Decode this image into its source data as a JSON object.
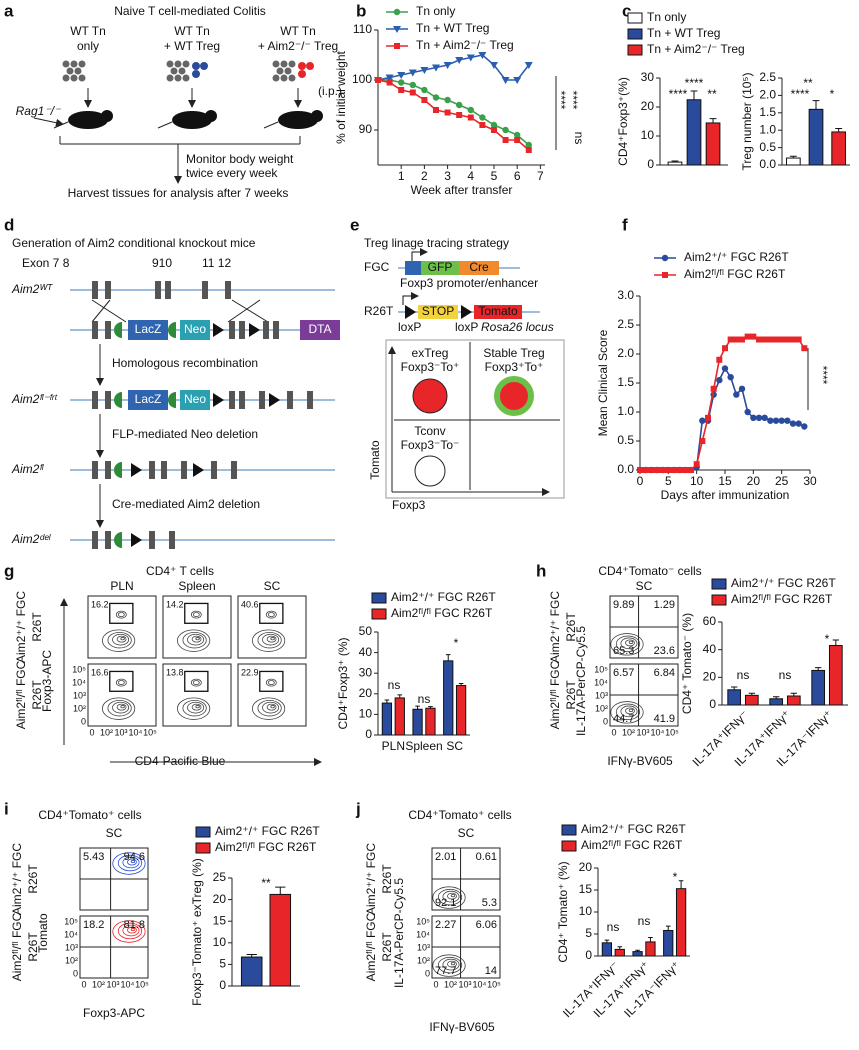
{
  "panel_labels": [
    "a",
    "b",
    "c",
    "d",
    "e",
    "f",
    "g",
    "h",
    "i",
    "j"
  ],
  "a": {
    "title": "Naive T cell-mediated Colitis",
    "groups": [
      [
        "WT Tn",
        "only"
      ],
      [
        "WT Tn",
        "+ WT Treg"
      ],
      [
        "WT Tn",
        "+ Aim2⁻/⁻ Treg"
      ]
    ],
    "route": "(i.p.)",
    "mouse": "Rag1⁻/⁻",
    "steps": [
      "Monitor body weight",
      "twice every week",
      "Harvest tissues for analysis after 7 weeks"
    ]
  },
  "d": {
    "title": "Generation of Aim2 conditional knockout mice",
    "exons": [
      "Exon 7 8",
      "910",
      "11 12"
    ],
    "alleles": [
      "Aim2ᵂᵀ",
      "Aim2ᶠˡ⁻ᶠʳᵗ",
      "Aim2ᶠˡ",
      "Aim2ᵈᵉˡ"
    ],
    "cassette": [
      "LacZ",
      "Neo",
      "DTA"
    ],
    "cassette2": [
      "LacZ",
      "Neo"
    ],
    "steps": [
      "Homologous recombination",
      "FLP-mediated Neo deletion",
      "Cre-mediated Aim2 deletion"
    ]
  },
  "e": {
    "title": "Treg linage tracing strategy",
    "fgc": {
      "name": "FGC",
      "parts": [
        "GFP",
        "Cre"
      ],
      "note": "Foxp3 promoter/enhancer"
    },
    "r26t": {
      "name": "R26T",
      "parts": [
        "STOP",
        "Tomato"
      ],
      "notes": [
        "loxP",
        "loxP",
        "Rosa26 locus"
      ]
    },
    "quadrants": [
      [
        "exTreg",
        "Foxp3⁻To⁺"
      ],
      [
        "Stable Treg",
        "Foxp3⁺To⁺"
      ],
      [
        "Tconv",
        "Foxp3⁻To⁻"
      ]
    ],
    "ylabel": "Tomato",
    "xlabel": "Foxp3"
  },
  "flows": [
    {
      "title": "CD4⁺ T cells",
      "columns": [
        "PLN",
        "Spleen",
        "SC"
      ],
      "rows": [
        [
          "Aim2⁺/⁺ FGC",
          "R26T"
        ],
        [
          "Aim2ᶠˡ/ᶠˡ FGC",
          "R26T"
        ]
      ],
      "ylabel": "Foxp3-APC",
      "xlabel": "CD4-Pacific Blue",
      "ticks": [
        "0",
        "10²",
        "10³",
        "10⁴",
        "10⁵"
      ],
      "values": [
        [
          [
            16.2
          ],
          [
            14.2
          ],
          [
            40.6
          ]
        ],
        [
          [
            16.6
          ],
          [
            13.8
          ],
          [
            22.9
          ]
        ]
      ]
    },
    {
      "title": "CD4⁺Tomato⁻ cells",
      "columns": [
        "SC"
      ],
      "rows": [
        [
          "Aim2⁺/⁺ FGC",
          "R26T"
        ],
        [
          "Aim2ᶠˡ/ᶠˡ FGC",
          "R26T"
        ]
      ],
      "ylabel": "IL-17A-PerCP-Cy5.5",
      "xlabel": "IFNγ-BV605",
      "ticks": [
        "0",
        "10²",
        "10³",
        "10⁴",
        "10⁵"
      ],
      "values": [
        [
          [
            9.89,
            1.29,
            65.3,
            23.6
          ]
        ],
        [
          [
            6.57,
            6.84,
            44.7,
            41.9
          ]
        ]
      ]
    },
    {
      "title": "CD4⁺Tomato⁺ cells",
      "columns": [
        "SC"
      ],
      "rows": [
        [
          "Aim2⁺/⁺ FGC",
          "R26T"
        ],
        [
          "Aim2ᶠˡ/ᶠˡ FGC",
          "R26T"
        ]
      ],
      "ylabel": "Tomato",
      "xlabel": "Foxp3-APC",
      "ticks": [
        "0",
        "10²",
        "10³",
        "10⁴",
        "10⁵"
      ],
      "values": [
        [
          [
            5.43,
            94.6
          ]
        ],
        [
          [
            18.2,
            81.8
          ]
        ]
      ]
    },
    {
      "title": "CD4⁺Tomato⁺ cells",
      "columns": [
        "SC"
      ],
      "rows": [
        [
          "Aim2⁺/⁺ FGC",
          "R26T"
        ],
        [
          "Aim2ᶠˡ/ᶠˡ FGC",
          "R26T"
        ]
      ],
      "ylabel": "IL-17A-PerCP-Cy5.5",
      "xlabel": "IFNγ-BV605",
      "ticks": [
        "0",
        "10²",
        "10³",
        "10⁴",
        "10⁵"
      ],
      "values": [
        [
          [
            2.01,
            0.61,
            92.1,
            5.3
          ]
        ],
        [
          [
            2.27,
            6.06,
            77.7,
            14
          ]
        ]
      ]
    }
  ],
  "chart_data": [
    {
      "type": "line",
      "ylabel": "% of initial weight",
      "xlabel": "Week after transfer",
      "x": [
        0,
        0.5,
        1,
        1.5,
        2,
        2.5,
        3,
        3.5,
        4,
        4.5,
        5,
        5.5,
        6,
        6.5
      ],
      "xlim": [
        0,
        7.2
      ],
      "xticks": [
        1,
        2,
        3,
        4,
        5,
        6,
        7
      ],
      "ylim": [
        83,
        110
      ],
      "yticks": [
        90,
        100,
        110
      ],
      "series": [
        {
          "name": "Tn only",
          "color": "#3aa14a",
          "marker": "circle",
          "values": [
            100,
            100,
            99.5,
            99,
            98,
            96.5,
            96,
            95,
            94,
            92.5,
            91,
            90,
            89,
            87
          ]
        },
        {
          "name": "Tn + WT Treg",
          "color": "#2a5fb0",
          "marker": "triangle",
          "values": [
            100,
            100.5,
            101,
            101.5,
            102,
            102.5,
            103,
            104,
            104.5,
            105,
            103,
            100,
            100,
            103
          ]
        },
        {
          "name": "Tn + Aim2⁻/⁻ Treg",
          "color": "#e8262a",
          "marker": "square",
          "values": [
            100,
            99.5,
            98,
            97.5,
            96,
            94,
            93.5,
            93,
            92.5,
            91,
            90,
            88,
            88,
            86
          ]
        }
      ],
      "annotations": [
        "****",
        "****",
        "ns"
      ]
    },
    {
      "type": "bar",
      "ylabel": "CD4⁺Foxp3⁺(%)",
      "categories": [
        null
      ],
      "ylim": [
        0,
        30
      ],
      "yticks": [
        0,
        10,
        20,
        30
      ],
      "series": [
        {
          "name": "Tn only",
          "color": "#ffffff",
          "values": [
            1
          ],
          "errors": [
            0.4
          ]
        },
        {
          "name": "Tn + WT Treg",
          "color": "#2a4a9c",
          "values": [
            22.5
          ],
          "errors": [
            3
          ]
        },
        {
          "name": "Tn + Aim2⁻/⁻ Treg",
          "color": "#e8262a",
          "values": [
            14.5
          ],
          "errors": [
            1.5
          ]
        }
      ],
      "annotations": [
        "****",
        "****",
        "**"
      ]
    },
    {
      "type": "bar",
      "ylabel": "Treg number (10⁵)",
      "categories": [
        null,
        null,
        null
      ],
      "values": [
        0.2,
        1.6,
        0.95
      ],
      "errors": [
        0.05,
        0.25,
        0.1
      ],
      "colors": [
        "#ffffff",
        "#2a4a9c",
        "#e8262a"
      ],
      "ylim": [
        0,
        2.5
      ],
      "yticks": [
        {
          "value": 0,
          "label": "0.0"
        },
        0.5,
        {
          "value": 1,
          "label": "1.0"
        },
        1.5,
        {
          "value": 2,
          "label": "2.0"
        },
        2.5
      ],
      "annotations": [
        "**",
        "****",
        "*"
      ]
    },
    {
      "type": "line",
      "ylabel": "Mean Clinical Score",
      "xlabel": "Days after immunization",
      "x": [
        0,
        1,
        2,
        3,
        4,
        5,
        6,
        7,
        8,
        9,
        10,
        11,
        12,
        13,
        14,
        15,
        16,
        17,
        18,
        19,
        20,
        21,
        22,
        23,
        24,
        25,
        26,
        27,
        28,
        29
      ],
      "xlim": [
        0,
        30
      ],
      "xticks": [
        0,
        5,
        10,
        15,
        20,
        25,
        30
      ],
      "ylim": [
        0,
        3
      ],
      "yticks": [
        {
          "value": 0,
          "label": "0.0"
        },
        0.5,
        {
          "value": 1,
          "label": "1.0"
        },
        1.5,
        {
          "value": 2,
          "label": "2.0"
        },
        2.5,
        {
          "value": 3,
          "label": "3.0"
        }
      ],
      "series": [
        {
          "name": "Aim2⁺/⁺ FGC R26T",
          "color": "#2a4a9c",
          "marker": "circle",
          "values": [
            0,
            0,
            0,
            0,
            0,
            0,
            0,
            0,
            0,
            0,
            0.05,
            0.85,
            0.85,
            1.3,
            1.55,
            1.75,
            1.6,
            1.3,
            1.4,
            1.0,
            0.9,
            0.9,
            0.9,
            0.85,
            0.85,
            0.85,
            0.85,
            0.8,
            0.8,
            0.75
          ]
        },
        {
          "name": "Aim2ᶠˡ/ᶠˡ FGC R26T",
          "color": "#e8262a",
          "marker": "square",
          "values": [
            0,
            0,
            0,
            0,
            0,
            0,
            0,
            0,
            0,
            0,
            0.1,
            0.5,
            0.9,
            1.4,
            1.9,
            2.1,
            2.25,
            2.25,
            2.25,
            2.3,
            2.3,
            2.25,
            2.25,
            2.25,
            2.25,
            2.25,
            2.25,
            2.25,
            2.25,
            2.1
          ]
        }
      ],
      "annotations": [
        "****"
      ]
    },
    {
      "type": "bar",
      "ylabel": "CD4⁺Foxp3⁺ (%)",
      "categories": [
        "PLN",
        "Spleen",
        "SC"
      ],
      "ylim": [
        0,
        50
      ],
      "yticks": [
        0,
        10,
        20,
        30,
        40,
        50
      ],
      "series": [
        {
          "name": "Aim2⁺/⁺ FGC R26T",
          "color": "#2a4a9c",
          "values": [
            15.5,
            12.5,
            36
          ],
          "errors": [
            1.5,
            1.5,
            3
          ]
        },
        {
          "name": "Aim2ᶠˡ/ᶠˡ FGC R26T",
          "color": "#e8262a",
          "values": [
            18,
            13,
            24
          ],
          "errors": [
            1.5,
            0.8,
            1
          ]
        }
      ],
      "annotations": [
        "ns",
        "ns",
        "*"
      ]
    },
    {
      "type": "bar",
      "ylabel": "CD4⁺ Tomato⁻ (%)",
      "categories": [
        "IL-17A⁺IFNγ⁻",
        "IL-17A⁺IFNγ⁺",
        "IL-17A⁻IFNγ⁺"
      ],
      "ylim": [
        0,
        60
      ],
      "yticks": [
        0,
        20,
        40,
        60
      ],
      "series": [
        {
          "name": "Aim2⁺/⁺ FGC R26T",
          "color": "#2a4a9c",
          "values": [
            11,
            4.5,
            25
          ],
          "errors": [
            2,
            1.5,
            2
          ]
        },
        {
          "name": "Aim2ᶠˡ/ᶠˡ FGC R26T",
          "color": "#e8262a",
          "values": [
            7,
            6.5,
            43
          ],
          "errors": [
            1.5,
            2,
            4
          ]
        }
      ],
      "annotations": [
        "ns",
        "ns",
        "*"
      ]
    },
    {
      "type": "bar",
      "ylabel": "Foxp3⁻Tomato⁺ exTreg (%)",
      "categories": [
        null
      ],
      "ylim": [
        0,
        25
      ],
      "yticks": [
        0,
        5,
        10,
        15,
        20,
        25
      ],
      "series": [
        {
          "name": "Aim2⁺/⁺ FGC R26T",
          "color": "#2a4a9c",
          "values": [
            6.7
          ],
          "errors": [
            0.6
          ]
        },
        {
          "name": "Aim2ᶠˡ/ᶠˡ FGC R26T",
          "color": "#e8262a",
          "values": [
            21.2
          ],
          "errors": [
            1.7
          ]
        }
      ],
      "annotations": [
        "**"
      ]
    },
    {
      "type": "bar",
      "ylabel": "CD4⁺ Tomato⁺ (%)",
      "categories": [
        "IL-17A⁺IFNγ⁻",
        "IL-17A⁺IFNγ⁺",
        "IL-17A⁻IFNγ⁺"
      ],
      "ylim": [
        0,
        20
      ],
      "yticks": [
        0,
        5,
        10,
        15,
        20
      ],
      "series": [
        {
          "name": "Aim2⁺/⁺ FGC R26T",
          "color": "#2a4a9c",
          "values": [
            3,
            1,
            5.8
          ],
          "errors": [
            0.6,
            0.3,
            1
          ]
        },
        {
          "name": "Aim2ᶠˡ/ᶠˡ FGC R26T",
          "color": "#e8262a",
          "values": [
            1.5,
            3.2,
            15.3
          ],
          "errors": [
            0.6,
            1,
            1.8
          ]
        }
      ],
      "annotations": [
        "ns",
        "ns",
        "*"
      ]
    }
  ]
}
